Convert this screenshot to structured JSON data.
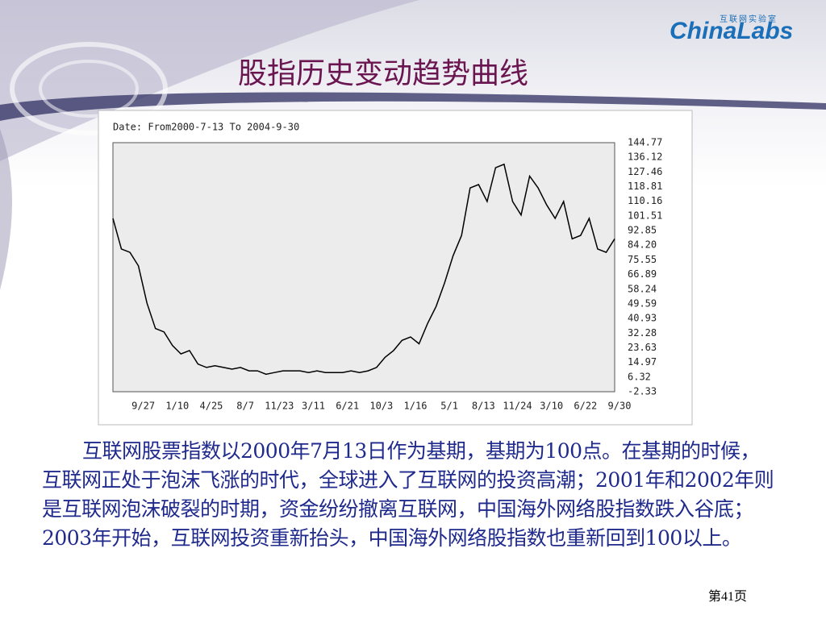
{
  "slide": {
    "logo_small": "互联网实验室",
    "logo": "ChinaLabs",
    "title": "股指历史变动趋势曲线",
    "paragraph": "互联网股票指数以2000年7月13日作为基期，基期为100点。在基期的时候，互联网正处于泡沫飞涨的时代，全球进入了互联网的投资高潮；2001年和2002年则是互联网泡沫破裂的时期，资金纷纷撤离互联网，中国海外网络股指数跌入谷底；2003年开始，互联网投资重新抬头，中国海外网络股指数也重新回到100以上。",
    "page_number": "第41页"
  },
  "chart_data": {
    "type": "line",
    "subtitle": "Date: From2000-7-13 To 2004-9-30",
    "categories": [
      null,
      null,
      null,
      "9/27",
      null,
      null,
      null,
      "1/10",
      null,
      null,
      null,
      "4/25",
      null,
      null,
      null,
      "8/7",
      null,
      null,
      null,
      "11/23",
      null,
      null,
      null,
      "3/11",
      null,
      null,
      null,
      "6/21",
      null,
      null,
      null,
      "10/3",
      null,
      null,
      null,
      "1/16",
      null,
      null,
      null,
      "5/1",
      null,
      null,
      null,
      "8/13",
      null,
      null,
      null,
      "11/24",
      null,
      null,
      null,
      "3/10",
      null,
      null,
      null,
      "6/22",
      null,
      null,
      null,
      "9/30"
    ],
    "series": [
      {
        "color": "#000000",
        "values": [
          100,
          82,
          80,
          72,
          50,
          35,
          33,
          25,
          20,
          22,
          14,
          12,
          13,
          12,
          11,
          12,
          10,
          10,
          8,
          9,
          10,
          10,
          10,
          9,
          10,
          9,
          9,
          9,
          10,
          9,
          10,
          12,
          18,
          22,
          28,
          30,
          26,
          38,
          48,
          62,
          78,
          90,
          118,
          120,
          110,
          130,
          132,
          110,
          102,
          125,
          118,
          108,
          100,
          110,
          88,
          90,
          100,
          82,
          80,
          88
        ]
      }
    ],
    "ylim": [
      -2.33,
      144.77
    ],
    "yticks": [
      144.77,
      136.12,
      127.46,
      118.81,
      110.16,
      101.51,
      92.85,
      {
        "value": 84.2,
        "label": "84.20"
      },
      75.55,
      66.89,
      58.24,
      49.59,
      40.93,
      32.28,
      23.63,
      14.97,
      6.32,
      -2.33
    ]
  }
}
